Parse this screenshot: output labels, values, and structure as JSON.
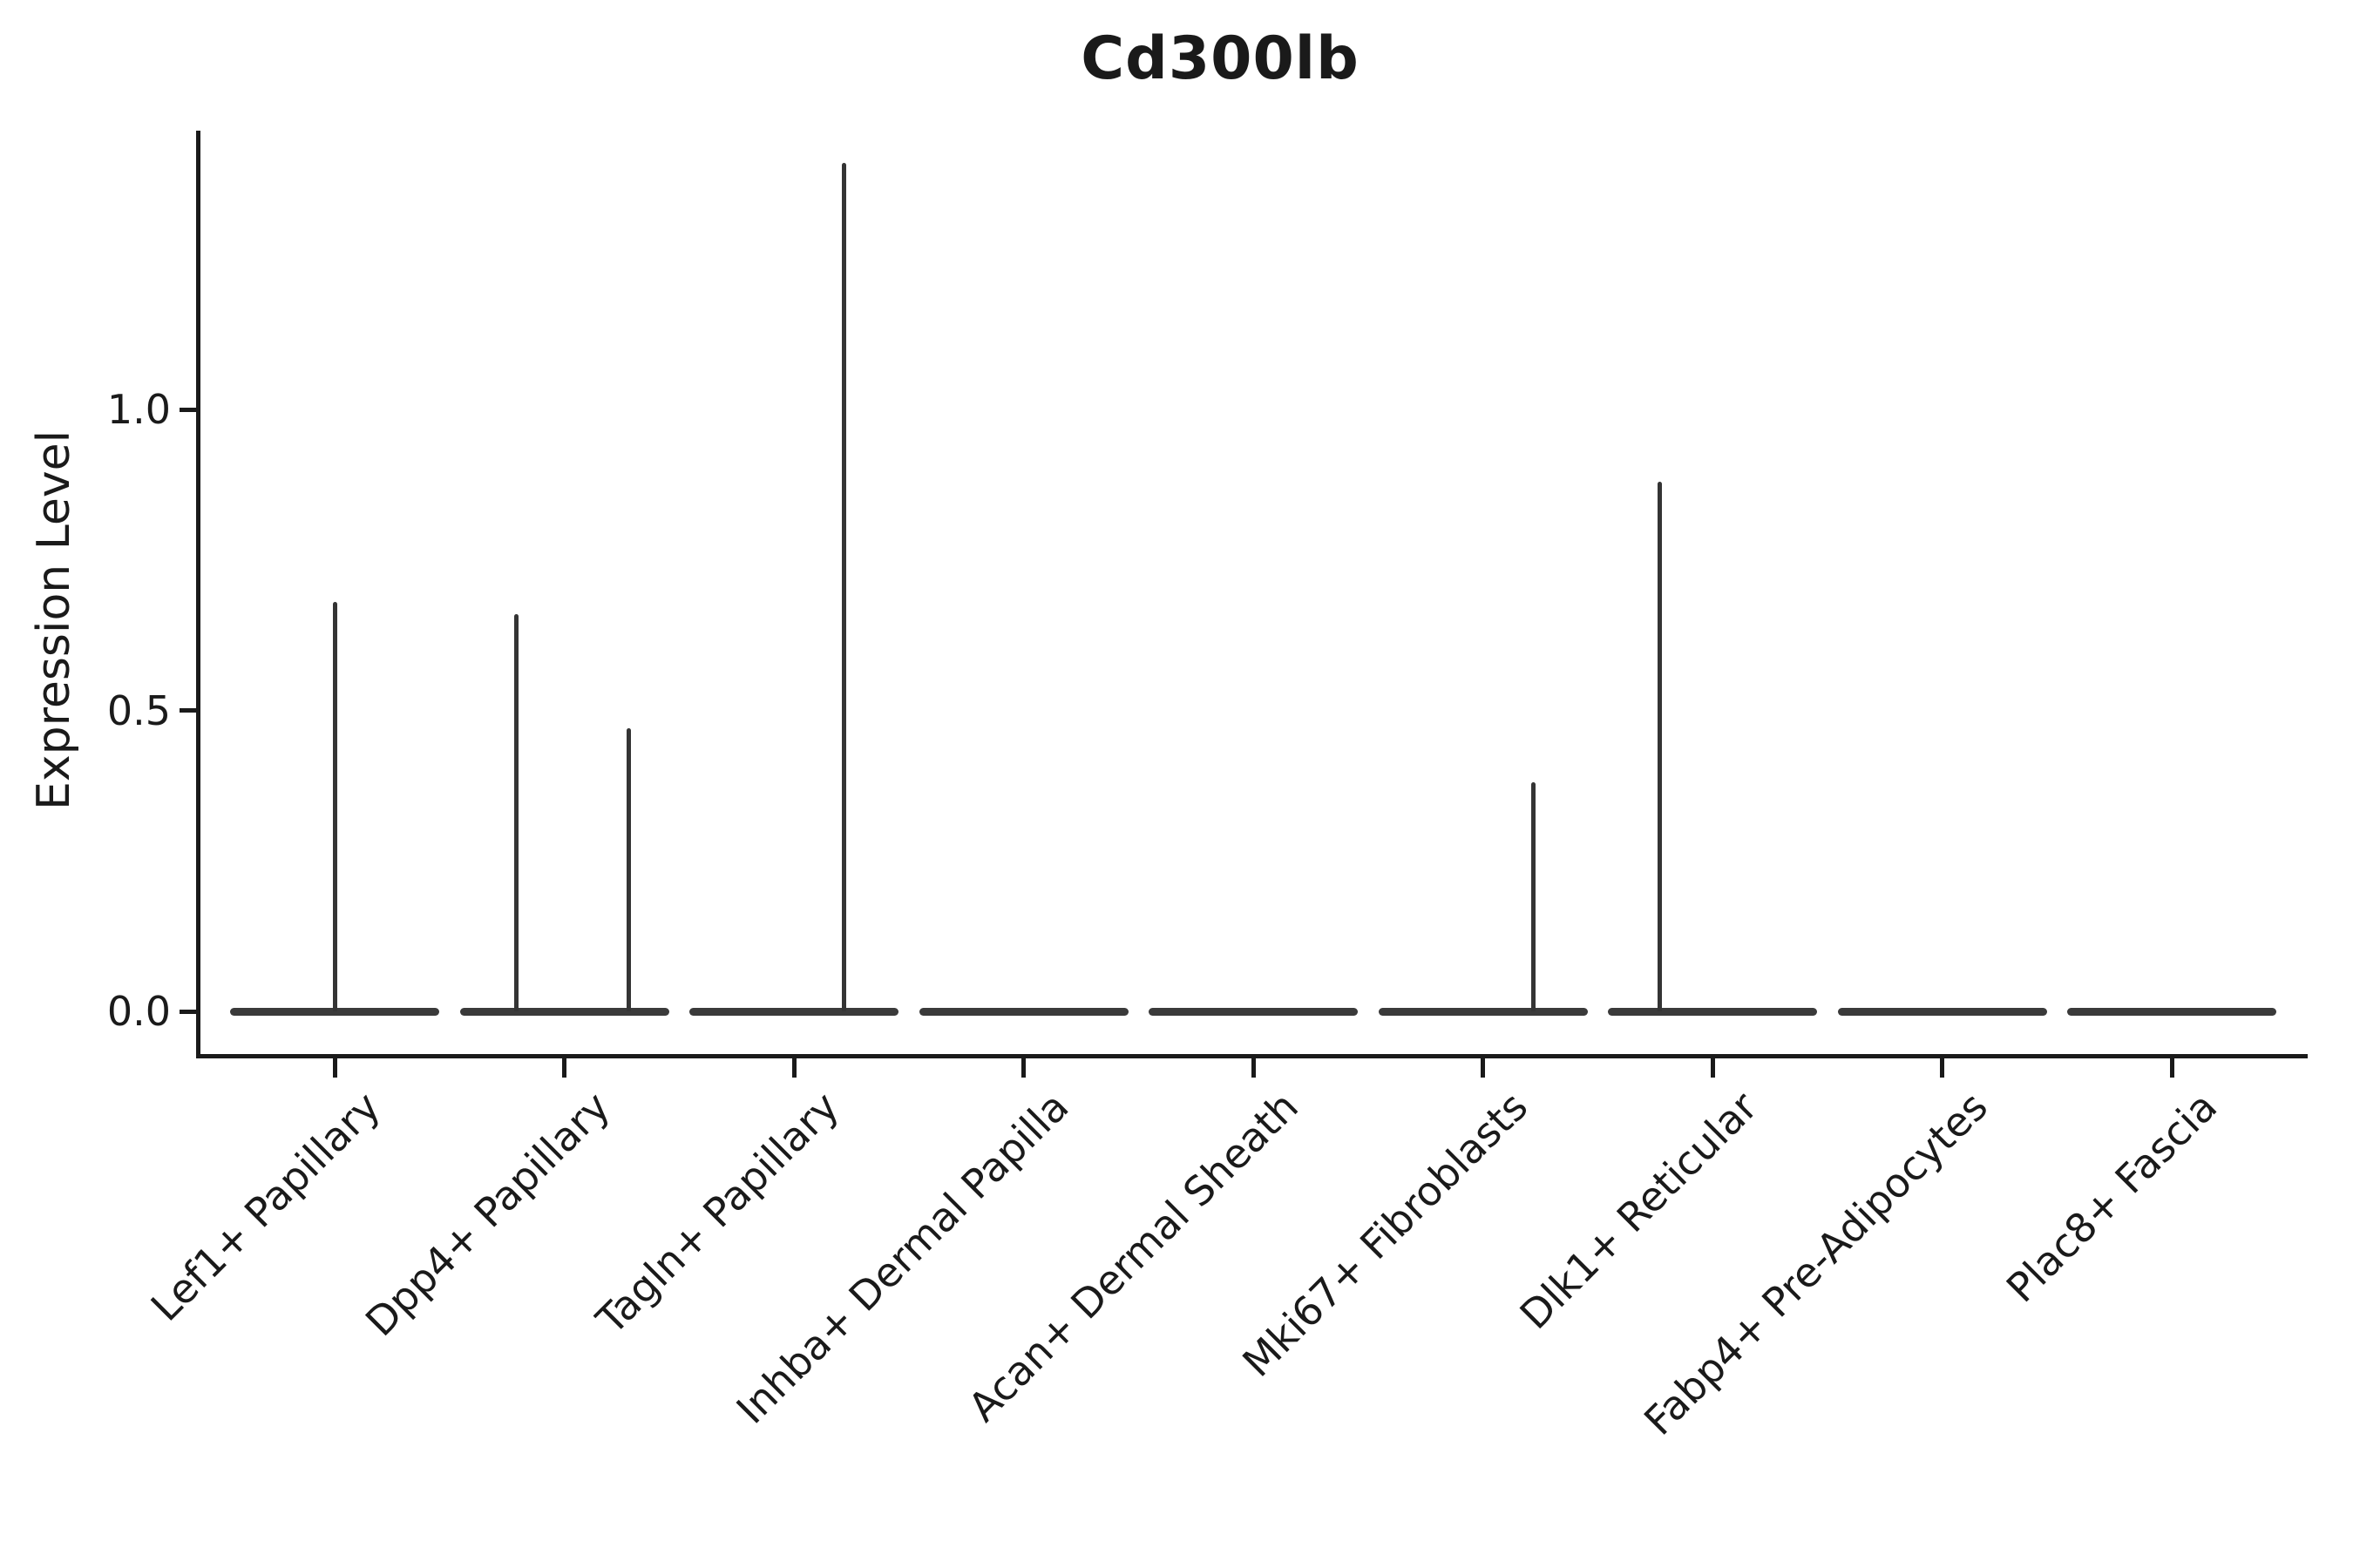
{
  "title": "Cd300lb",
  "y_axis": {
    "label": "Expression Level",
    "ticks": [
      {
        "label": "0.0",
        "value": 0.0
      },
      {
        "label": "0.5",
        "value": 0.5
      },
      {
        "label": "1.0",
        "value": 1.0
      }
    ]
  },
  "chart_data": {
    "type": "violin",
    "title": "Cd300lb",
    "xlabel": "",
    "ylabel": "Expression Level",
    "ylim": [
      -0.07,
      1.46
    ],
    "grid": false,
    "legend": false,
    "categories": [
      "Lef1+ Papillary",
      "Dpp4+ Papillary",
      "Tagln+ Papillary",
      "Inhba+ Dermal Papilla",
      "Acan+ Dermal Sheath",
      "Mki67+ Fibroblasts",
      "Dlk1+ Reticular",
      "Fabp4+ Pre-Adipocytes",
      "Plac8+ Fascia"
    ],
    "violins": [
      {
        "category": "Lef1+ Papillary",
        "body_value": 0.0,
        "spikes": [
          {
            "value": 0.68,
            "offset": 0.0
          }
        ]
      },
      {
        "category": "Dpp4+ Papillary",
        "body_value": 0.0,
        "spikes": [
          {
            "value": 0.66,
            "offset": -0.21
          },
          {
            "value": 0.47,
            "offset": 0.28
          }
        ]
      },
      {
        "category": "Tagln+ Papillary",
        "body_value": 0.0,
        "spikes": [
          {
            "value": 1.41,
            "offset": 0.22
          }
        ]
      },
      {
        "category": "Inhba+ Dermal Papilla",
        "body_value": 0.0,
        "spikes": []
      },
      {
        "category": "Acan+ Dermal Sheath",
        "body_value": 0.0,
        "spikes": []
      },
      {
        "category": "Mki67+ Fibroblasts",
        "body_value": 0.0,
        "spikes": [
          {
            "value": 0.38,
            "offset": 0.22
          }
        ]
      },
      {
        "category": "Dlk1+ Reticular",
        "body_value": 0.0,
        "spikes": [
          {
            "value": 0.88,
            "offset": -0.23
          }
        ]
      },
      {
        "category": "Fabp4+ Pre-Adipocytes",
        "body_value": 0.0,
        "spikes": []
      },
      {
        "category": "Plac8+ Fascia",
        "body_value": 0.0,
        "spikes": []
      }
    ]
  },
  "colors": {
    "background": "#ffffff",
    "text": "#1a1a1a",
    "spine": "#1a1a1a",
    "violin": "#3a3a3a"
  }
}
